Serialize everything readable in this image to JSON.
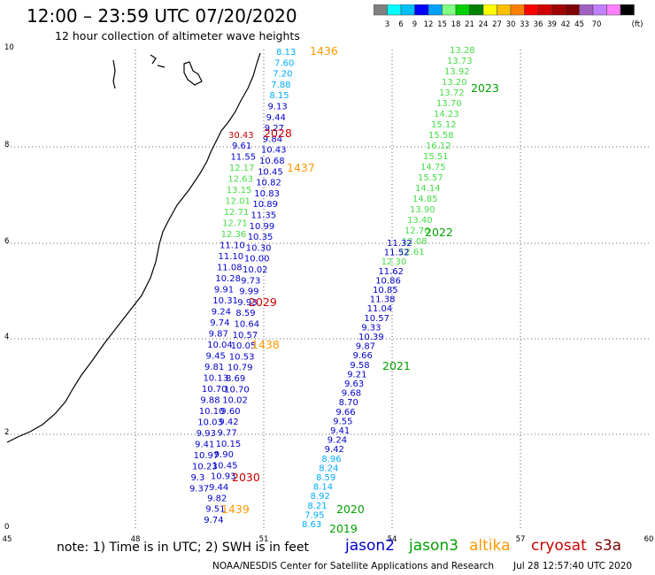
{
  "title": "12:00 – 23:59 UTC 07/20/2020",
  "subtitle": "12 hour collection of altimeter wave heights",
  "scale": {
    "colors": [
      "#808080",
      "#00ffff",
      "#00c0ff",
      "#0000ff",
      "#00a0ff",
      "#80ff80",
      "#00d000",
      "#008000",
      "#ffff00",
      "#ffc000",
      "#ff8000",
      "#ff0000",
      "#d00000",
      "#a00000",
      "#800000",
      "#a060c0",
      "#c080ff",
      "#ff80ff",
      "#000000"
    ],
    "labels": [
      "3",
      "6",
      "9",
      "12",
      "15",
      "18",
      "21",
      "24",
      "27",
      "30",
      "33",
      "36",
      "39",
      "42",
      "45",
      "70"
    ],
    "unit": "(ft)"
  },
  "axes": {
    "x_ticks": [
      "45",
      "48",
      "51",
      "54",
      "57",
      "60"
    ],
    "y_ticks": [
      "0",
      "2",
      "4",
      "6",
      "8",
      "10"
    ]
  },
  "tracks": {
    "jason2": {
      "label_values": [
        "8.13",
        "7.60",
        "7.20",
        "7.88",
        "8.15",
        "9.13",
        "9.44",
        "9.27",
        "9.84",
        "10.43",
        "10.68",
        "10.45",
        "10.82",
        "10.83",
        "10.89",
        "11.35",
        "10.99",
        "10.35",
        "10.30",
        "10.00",
        "10.02",
        "9.73",
        "9.99",
        "9.93",
        "8.59",
        "10.64",
        "10.57",
        "10.05",
        "10.53",
        "10.79",
        "8.69",
        "10.70",
        "10.02",
        "9.60",
        "9.42",
        "9.77",
        "10.15",
        "9.90",
        "10.45",
        "10.93",
        "9.44",
        "9.82",
        "9.51",
        "9.74"
      ],
      "passes": [
        "1436",
        "2028",
        "1437",
        "2029",
        "1438",
        "2030",
        "1439"
      ]
    },
    "jason3": {
      "values": [
        "13.28",
        "13.73",
        "13.92",
        "13.20",
        "13.72",
        "13.70",
        "14.23",
        "15.12",
        "15.58",
        "16.12",
        "15.51",
        "14.75",
        "15.57",
        "14.14",
        "14.85",
        "13.90",
        "13.40",
        "12.70",
        "12.08",
        "12.61"
      ],
      "pass": "2023",
      "pass2": "2022"
    },
    "track_2021": {
      "values": [
        "11.32",
        "11.52",
        "12.30",
        "11.62",
        "10.86",
        "10.85",
        "11.38",
        "11.04",
        "10.57",
        "9.33",
        "10.39",
        "9.87",
        "9.66",
        "9.58",
        "9.21",
        "9.63",
        "9.68",
        "8.70",
        "9.66",
        "9.55",
        "9.41",
        "9.24",
        "9.42",
        "8.96",
        "8.24",
        "8.59",
        "8.14",
        "8.92",
        "8.21",
        "7.95",
        "8.63"
      ],
      "passes": [
        "2021",
        "2020",
        "2019"
      ]
    },
    "west_values": [
      "9.61",
      "11.55",
      "12.17",
      "12.63",
      "13.15",
      "12.01",
      "12.71",
      "12.71",
      "12.36",
      "11.10",
      "11.10",
      "11.08",
      "10.28",
      "9.91",
      "10.31",
      "9.24",
      "9.74",
      "9.87",
      "10.04",
      "9.45",
      "9.81",
      "10.13",
      "10.70",
      "9.88",
      "10.10",
      "10.03",
      "9.93",
      "9.41",
      "10.97",
      "10.23",
      "9.3",
      "9.37"
    ],
    "red_value": "30.43"
  },
  "note": "note:  1) Time is in UTC;  2) SWH is in feet",
  "legend": [
    {
      "label": "jason2",
      "color": "#0000cc"
    },
    {
      "label": "jason3",
      "color": "#00a000"
    },
    {
      "label": "altika",
      "color": "#ff9900"
    },
    {
      "label": "cryosat",
      "color": "#cc0000"
    },
    {
      "label": "s3a",
      "color": "#800000"
    }
  ],
  "credit": "NOAA/NESDIS Center for Satellite Applications and Research",
  "timestamp": "Jul 28 12:57:40 UTC 2020"
}
